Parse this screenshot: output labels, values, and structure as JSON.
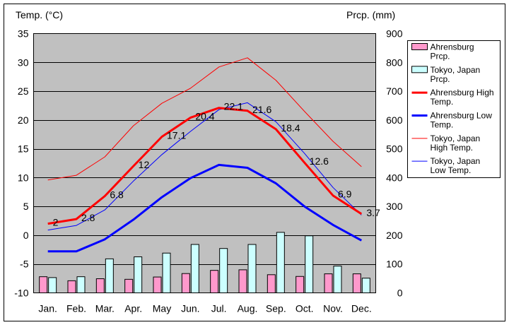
{
  "chart_data": {
    "type": "bar+line",
    "title": "",
    "left_axis_title": "Temp. (°C)",
    "right_axis_title": "Prcp. (mm)",
    "categories": [
      "Jan.",
      "Feb.",
      "Mar.",
      "Apr.",
      "May",
      "Jun.",
      "Jul.",
      "Aug.",
      "Sep.",
      "Oct.",
      "Nov.",
      "Dec."
    ],
    "ylim_left": [
      -10,
      35
    ],
    "yticks_left": [
      "-10",
      "-5",
      "0",
      "5",
      "10",
      "15",
      "20",
      "25",
      "30",
      "35"
    ],
    "ylim_right": [
      0,
      900
    ],
    "yticks_right": [
      "0",
      "100",
      "200",
      "300",
      "400",
      "500",
      "600",
      "700",
      "800",
      "900"
    ],
    "grid": true,
    "legend_position": "right",
    "bar_series": [
      {
        "name": "Ahrensburg Prcp.",
        "name_lines": [
          "Ahrensburg",
          "Prcp."
        ],
        "color": "#ff99cc",
        "values": [
          56,
          42,
          49,
          47,
          55,
          67,
          78,
          80,
          63,
          57,
          66,
          66
        ]
      },
      {
        "name": "Tokyo, Japan Prcp.",
        "name_lines": [
          "Tokyo, Japan",
          "Prcp."
        ],
        "color": "#ccffff",
        "values": [
          53,
          56,
          118,
          125,
          138,
          168,
          154,
          168,
          210,
          198,
          93,
          51
        ]
      }
    ],
    "line_series": [
      {
        "name": "Ahrensburg High Temp.",
        "name_lines": [
          "Ahrensburg High",
          "Temp."
        ],
        "color": "#ff0000",
        "width": 3,
        "values": [
          2.0,
          2.8,
          6.8,
          12.0,
          17.1,
          20.4,
          22.1,
          21.6,
          18.4,
          12.6,
          6.9,
          3.7
        ],
        "labels": [
          "2",
          "2.8",
          "6.8",
          "12",
          "17.1",
          "20.4",
          "22.1",
          "21.6",
          "18.4",
          "12.6",
          "6.9",
          "3.7"
        ]
      },
      {
        "name": "Ahrensburg Low Temp.",
        "name_lines": [
          "Ahrensburg Low",
          "Temp."
        ],
        "color": "#0000ff",
        "width": 3,
        "values": [
          -2.8,
          -2.8,
          -0.7,
          2.7,
          6.6,
          9.9,
          12.2,
          11.7,
          9.0,
          5.0,
          1.8,
          -0.9
        ]
      },
      {
        "name": "Tokyo, Japan High Temp.",
        "name_lines": [
          "Tokyo, Japan",
          "High Temp."
        ],
        "color": "#ff0000",
        "width": 1,
        "values": [
          9.6,
          10.4,
          13.6,
          19.0,
          22.9,
          25.5,
          29.2,
          30.8,
          26.9,
          21.5,
          16.3,
          11.9
        ]
      },
      {
        "name": "Tokyo, Japan Low Temp.",
        "name_lines": [
          "Tokyo, Japan",
          "Low Temp."
        ],
        "color": "#0000ff",
        "width": 1,
        "values": [
          0.9,
          1.7,
          4.4,
          9.4,
          14.0,
          18.0,
          21.8,
          23.0,
          19.7,
          14.2,
          8.3,
          3.5
        ]
      }
    ]
  }
}
